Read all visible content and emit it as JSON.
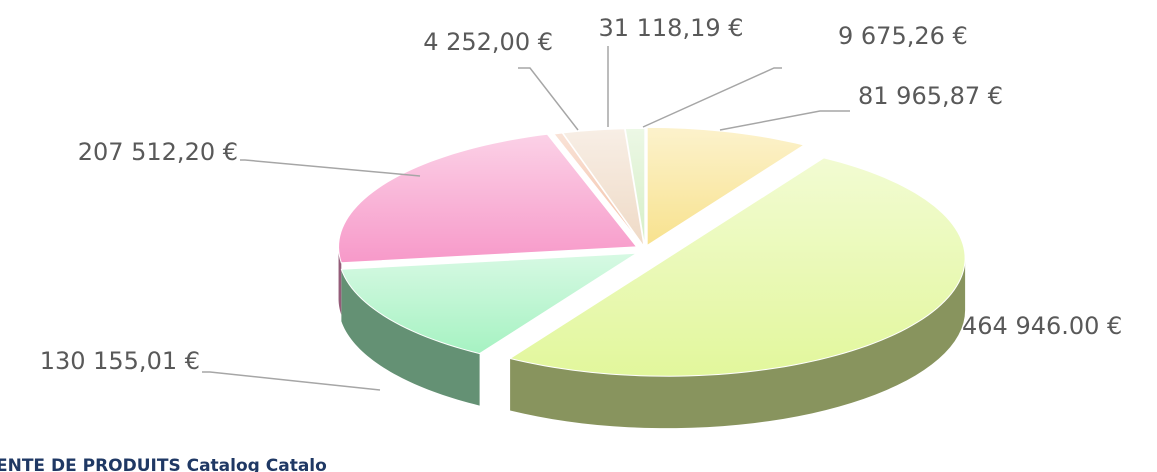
{
  "chart_data": {
    "type": "pie3d",
    "values": [
      81965.87,
      464946.0,
      130155.01,
      207512.2,
      4252.0,
      31118.19,
      9675.26
    ],
    "value_labels": [
      "81 965,87 €",
      "464 946.00 €",
      "130 155,01 €",
      "207 512,20 €",
      "4 252,00 €",
      "31 118,19 €",
      "9 675,26 €"
    ],
    "colors": [
      "#f8e28e",
      "#e2f79c",
      "#a6f2c2",
      "#f799c9",
      "#f3c0a6",
      "#efdac6",
      "#d5efc6"
    ],
    "footer": "ENTE DE PRODUITS Catalog Catalo"
  }
}
